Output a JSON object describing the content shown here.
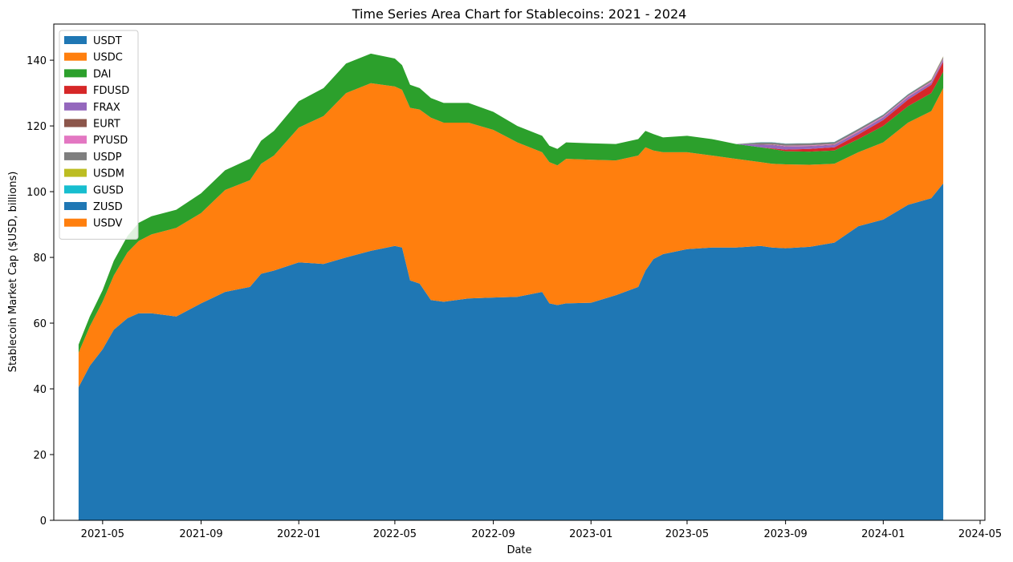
{
  "chart_data": {
    "type": "area",
    "stacked": true,
    "title": "Time Series Area Chart for Stablecoins: 2021 - 2024",
    "xlabel": "Date",
    "ylabel": "Stablecoin Market Cap ($USD, billions)",
    "xlim": [
      "2021-03-01",
      "2024-05-07"
    ],
    "ylim": [
      0,
      151
    ],
    "x_ticks": [
      "2021-05",
      "2021-09",
      "2022-01",
      "2022-05",
      "2022-09",
      "2023-01",
      "2023-05",
      "2023-09",
      "2024-01",
      "2024-05"
    ],
    "y_ticks": [
      0,
      20,
      40,
      60,
      80,
      100,
      120,
      140
    ],
    "legend_position": "top-left",
    "grid": false,
    "x": [
      "2021-04-01",
      "2021-04-15",
      "2021-05-01",
      "2021-05-15",
      "2021-06-01",
      "2021-06-15",
      "2021-07-01",
      "2021-08-01",
      "2021-09-01",
      "2021-10-01",
      "2021-11-01",
      "2021-11-15",
      "2021-12-01",
      "2022-01-01",
      "2022-02-01",
      "2022-03-01",
      "2022-04-01",
      "2022-05-01",
      "2022-05-10",
      "2022-05-20",
      "2022-06-01",
      "2022-06-15",
      "2022-07-01",
      "2022-08-01",
      "2022-09-01",
      "2022-10-01",
      "2022-11-01",
      "2022-11-10",
      "2022-11-20",
      "2022-12-01",
      "2023-01-01",
      "2023-02-01",
      "2023-03-01",
      "2023-03-10",
      "2023-03-20",
      "2023-04-01",
      "2023-05-01",
      "2023-06-01",
      "2023-07-01",
      "2023-08-01",
      "2023-08-15",
      "2023-09-01",
      "2023-10-01",
      "2023-11-01",
      "2023-12-01",
      "2024-01-01",
      "2024-02-01",
      "2024-03-01",
      "2024-03-16"
    ],
    "series": [
      {
        "name": "USDT",
        "color": "#1f77b4",
        "values": [
          40.5,
          47,
          52,
          58,
          61.5,
          63,
          63,
          62,
          66,
          69.5,
          71,
          75,
          76,
          78.5,
          78,
          80,
          82,
          83.5,
          83,
          73,
          72,
          67,
          66.5,
          67.5,
          67.8,
          68,
          69.5,
          66,
          65.5,
          66,
          66.2,
          68.5,
          71,
          76,
          79.5,
          81,
          82.5,
          83,
          83,
          83.5,
          83,
          82.8,
          83.2,
          84.5,
          89.5,
          91.5,
          96,
          98,
          102.5
        ]
      },
      {
        "name": "USDC",
        "color": "#ff7f0e",
        "values": [
          10.5,
          12,
          14.5,
          16.5,
          20,
          22,
          24,
          27,
          27.5,
          31,
          32.5,
          33.5,
          35,
          41,
          45,
          50,
          51,
          48.5,
          48,
          52.5,
          53,
          55.5,
          54.5,
          53.5,
          51,
          47,
          42.5,
          43,
          42.5,
          44,
          43.5,
          41,
          40,
          37.5,
          33,
          31,
          29.5,
          28,
          27,
          25.5,
          25.5,
          25.5,
          25,
          24,
          22.5,
          23.5,
          25,
          26.5,
          29
        ]
      },
      {
        "name": "DAI",
        "color": "#2ca02c",
        "values": [
          2.5,
          3,
          3.5,
          4.5,
          5,
          5.5,
          5.5,
          5.5,
          6,
          6,
          6.5,
          7,
          7.5,
          8,
          8.5,
          9,
          9,
          8.5,
          7.5,
          7,
          6.5,
          6,
          6,
          6,
          5.5,
          5,
          5,
          5,
          5,
          5,
          5,
          5,
          5,
          5,
          5,
          4.5,
          5,
          5,
          4.5,
          4.5,
          4.5,
          4,
          4,
          4,
          4,
          5,
          5,
          5.5,
          5
        ]
      },
      {
        "name": "FDUSD",
        "color": "#d62728",
        "values": [
          0,
          0,
          0,
          0,
          0,
          0,
          0,
          0,
          0,
          0,
          0,
          0,
          0,
          0,
          0,
          0,
          0,
          0,
          0,
          0,
          0,
          0,
          0,
          0,
          0,
          0,
          0,
          0,
          0,
          0,
          0,
          0,
          0,
          0,
          0,
          0,
          0,
          0,
          0,
          0,
          0.2,
          0.5,
          0.8,
          1.0,
          1.4,
          1.8,
          2.0,
          2.5,
          3.0
        ]
      },
      {
        "name": "FRAX",
        "color": "#9467bd",
        "values": [
          0,
          0,
          0,
          0,
          0,
          0,
          0,
          0,
          0,
          0,
          0,
          0,
          0,
          0,
          0,
          0,
          0,
          0,
          0,
          0,
          0,
          0,
          0,
          0,
          0,
          0,
          0,
          0,
          0,
          0,
          0,
          0,
          0,
          0,
          0,
          0,
          0,
          0,
          0,
          0.8,
          1.0,
          0.9,
          0.8,
          0.7,
          0.7,
          0.7,
          0.7,
          0.6,
          0.6
        ]
      },
      {
        "name": "EURT",
        "color": "#8c564b",
        "values": [
          0,
          0,
          0,
          0,
          0,
          0,
          0,
          0,
          0,
          0,
          0,
          0,
          0,
          0,
          0,
          0,
          0,
          0,
          0,
          0,
          0,
          0,
          0,
          0,
          0,
          0,
          0,
          0,
          0,
          0,
          0,
          0,
          0,
          0,
          0,
          0,
          0,
          0,
          0,
          0.1,
          0.1,
          0.1,
          0.1,
          0.1,
          0.1,
          0.1,
          0.1,
          0.1,
          0.1
        ]
      },
      {
        "name": "PYUSD",
        "color": "#e377c2",
        "values": [
          0,
          0,
          0,
          0,
          0,
          0,
          0,
          0,
          0,
          0,
          0,
          0,
          0,
          0,
          0,
          0,
          0,
          0,
          0,
          0,
          0,
          0,
          0,
          0,
          0,
          0,
          0,
          0,
          0,
          0,
          0,
          0,
          0,
          0,
          0,
          0,
          0,
          0,
          0,
          0,
          0.1,
          0.2,
          0.2,
          0.2,
          0.3,
          0.3,
          0.3,
          0.3,
          0.3
        ]
      },
      {
        "name": "USDP",
        "color": "#7f7f7f",
        "values": [
          0,
          0,
          0,
          0,
          0,
          0,
          0,
          0,
          0,
          0,
          0,
          0,
          0,
          0,
          0,
          0,
          0,
          0,
          0,
          0,
          0,
          0,
          0,
          0,
          0,
          0,
          0,
          0,
          0,
          0,
          0,
          0,
          0,
          0,
          0,
          0,
          0,
          0,
          0,
          0.6,
          0.6,
          0.6,
          0.6,
          0.6,
          0.6,
          0.5,
          0.5,
          0.5,
          0.5
        ]
      },
      {
        "name": "USDM",
        "color": "#bcbd22",
        "values": [
          0,
          0,
          0,
          0,
          0,
          0,
          0,
          0,
          0,
          0,
          0,
          0,
          0,
          0,
          0,
          0,
          0,
          0,
          0,
          0,
          0,
          0,
          0,
          0,
          0,
          0,
          0,
          0,
          0,
          0,
          0,
          0,
          0,
          0,
          0,
          0,
          0,
          0,
          0,
          0,
          0,
          0,
          0,
          0,
          0,
          0,
          0,
          0.05,
          0.05
        ]
      },
      {
        "name": "GUSD",
        "color": "#17becf",
        "values": [
          0,
          0,
          0,
          0,
          0,
          0,
          0,
          0,
          0,
          0,
          0,
          0,
          0,
          0,
          0,
          0,
          0,
          0,
          0,
          0,
          0,
          0,
          0,
          0,
          0,
          0,
          0,
          0,
          0,
          0,
          0,
          0,
          0,
          0,
          0,
          0,
          0,
          0,
          0,
          0.05,
          0.05,
          0.05,
          0.05,
          0.05,
          0.05,
          0.05,
          0.05,
          0.05,
          0.05
        ]
      },
      {
        "name": "ZUSD",
        "color": "#1f77b4",
        "values": [
          0,
          0,
          0,
          0,
          0,
          0,
          0,
          0,
          0,
          0,
          0,
          0,
          0,
          0,
          0,
          0,
          0,
          0,
          0,
          0,
          0,
          0,
          0,
          0,
          0,
          0,
          0,
          0,
          0,
          0,
          0,
          0,
          0,
          0,
          0,
          0,
          0,
          0,
          0,
          0,
          0,
          0,
          0,
          0,
          0,
          0,
          0,
          0.02,
          0.02
        ]
      },
      {
        "name": "USDV",
        "color": "#ff7f0e",
        "values": [
          0,
          0,
          0,
          0,
          0,
          0,
          0,
          0,
          0,
          0,
          0,
          0,
          0,
          0,
          0,
          0,
          0,
          0,
          0,
          0,
          0,
          0,
          0,
          0,
          0,
          0,
          0,
          0,
          0,
          0,
          0,
          0,
          0,
          0,
          0,
          0,
          0,
          0,
          0,
          0,
          0,
          0,
          0,
          0,
          0,
          0,
          0,
          0.05,
          0.05
        ]
      }
    ]
  }
}
